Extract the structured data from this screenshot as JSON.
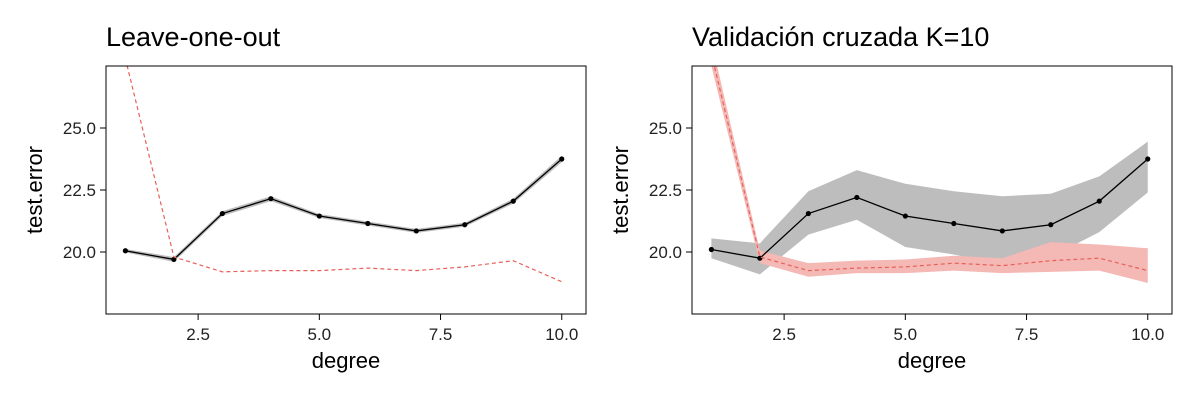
{
  "chart_data": [
    {
      "type": "line",
      "title": "Leave-one-out",
      "xlabel": "degree",
      "ylabel": "test.error",
      "xlim": [
        0.6,
        10.5
      ],
      "ylim": [
        17.5,
        27.5
      ],
      "xticks": [
        2.5,
        5.0,
        7.5,
        10.0
      ],
      "xtick_labels": [
        "2.5",
        "5.0",
        "7.5",
        "10.0"
      ],
      "yticks": [
        20.0,
        22.5,
        25.0
      ],
      "ytick_labels": [
        "20.0",
        "22.5",
        "25.0"
      ],
      "grid": false,
      "legend": "none",
      "x": [
        1,
        2,
        3,
        4,
        5,
        6,
        7,
        8,
        9,
        10
      ],
      "series": [
        {
          "style": "solid",
          "color": "#000000",
          "markers": true,
          "values": [
            20.05,
            19.7,
            21.55,
            22.15,
            21.45,
            21.15,
            20.85,
            21.1,
            22.05,
            23.75
          ],
          "band_lower": [
            19.98,
            19.6,
            21.45,
            22.05,
            21.37,
            21.07,
            20.77,
            21.02,
            21.95,
            23.62
          ],
          "band_upper": [
            20.12,
            19.8,
            21.65,
            22.25,
            21.53,
            21.23,
            20.93,
            21.18,
            22.15,
            23.88
          ],
          "band_color": "#bdbdbd"
        },
        {
          "style": "dashed",
          "color": "#e8605a",
          "markers": false,
          "values": [
            27.8,
            19.8,
            19.2,
            19.25,
            19.25,
            19.35,
            19.25,
            19.4,
            19.65,
            18.8
          ]
        }
      ]
    },
    {
      "type": "line",
      "title": "Validación cruzada K=10",
      "xlabel": "degree",
      "ylabel": "test.error",
      "xlim": [
        0.6,
        10.5
      ],
      "ylim": [
        17.5,
        27.5
      ],
      "xticks": [
        2.5,
        5.0,
        7.5,
        10.0
      ],
      "xtick_labels": [
        "2.5",
        "5.0",
        "7.5",
        "10.0"
      ],
      "yticks": [
        20.0,
        22.5,
        25.0
      ],
      "ytick_labels": [
        "20.0",
        "22.5",
        "25.0"
      ],
      "grid": false,
      "legend": "none",
      "x": [
        1,
        2,
        3,
        4,
        5,
        6,
        7,
        8,
        9,
        10
      ],
      "series": [
        {
          "style": "solid",
          "color": "#000000",
          "markers": true,
          "values": [
            20.1,
            19.75,
            21.55,
            22.2,
            21.45,
            21.15,
            20.85,
            21.1,
            22.05,
            23.75
          ],
          "band_lower": [
            19.75,
            19.1,
            20.7,
            21.3,
            20.2,
            19.9,
            19.45,
            19.8,
            20.8,
            22.4
          ],
          "band_upper": [
            20.55,
            20.35,
            22.45,
            23.3,
            22.75,
            22.45,
            22.25,
            22.35,
            23.05,
            24.45
          ],
          "band_color": "#bdbdbd"
        },
        {
          "style": "dashed",
          "color": "#e8605a",
          "markers": false,
          "values": [
            28.0,
            19.8,
            19.25,
            19.35,
            19.4,
            19.55,
            19.45,
            19.65,
            19.75,
            19.25
          ],
          "band_lower": [
            27.5,
            19.55,
            19.0,
            19.15,
            19.15,
            19.25,
            19.15,
            19.2,
            19.25,
            18.75
          ],
          "band_upper": [
            28.5,
            20.05,
            19.55,
            19.65,
            19.7,
            19.85,
            19.75,
            20.4,
            20.3,
            20.15
          ],
          "band_color": "#f4b8b5"
        }
      ]
    }
  ]
}
